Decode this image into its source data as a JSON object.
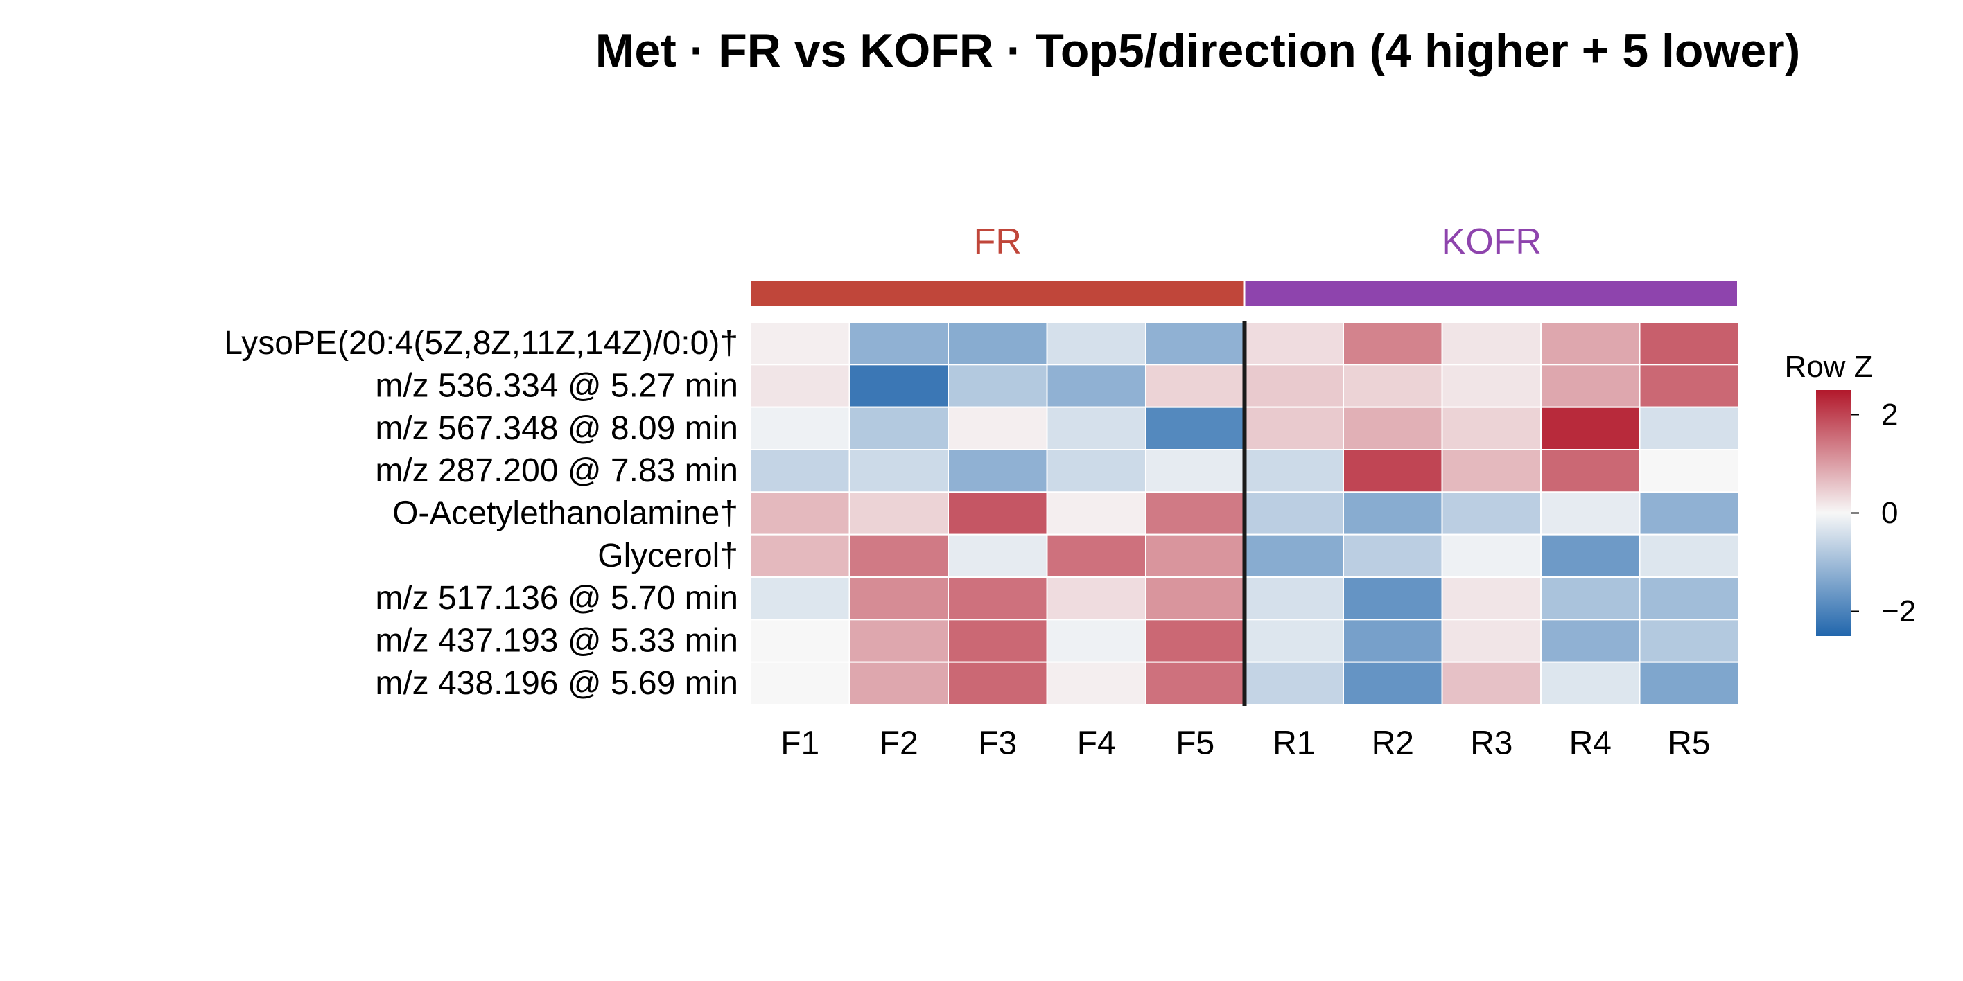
{
  "chart_data": {
    "type": "heatmap",
    "title": "Met · FR vs KOFR · Top5/direction (4 higher + 5 lower)",
    "groups": [
      {
        "label": "FR",
        "color": "#c0463a",
        "columns": [
          "F1",
          "F2",
          "F3",
          "F4",
          "F5"
        ]
      },
      {
        "label": "KOFR",
        "color": "#8e44ad",
        "columns": [
          "R1",
          "R2",
          "R3",
          "R4",
          "R5"
        ]
      }
    ],
    "columns": [
      "F1",
      "F2",
      "F3",
      "F4",
      "F5",
      "R1",
      "R2",
      "R3",
      "R4",
      "R5"
    ],
    "rows": [
      "LysoPE(20:4(5Z,8Z,11Z,14Z)/0:0)†",
      "m/z 536.334 @ 5.27 min",
      "m/z 567.348 @ 8.09 min",
      "m/z 287.200 @ 7.83 min",
      "O-Acetylethanolamine†",
      "Glycerol†",
      "m/z 517.136 @ 5.70 min",
      "m/z 437.193 @ 5.33 min",
      "m/z 438.196 @ 5.69 min"
    ],
    "values": [
      [
        0.1,
        -1.2,
        -1.3,
        -0.4,
        -1.2,
        0.3,
        1.3,
        0.2,
        0.9,
        1.7
      ],
      [
        0.2,
        -2.2,
        -0.8,
        -1.2,
        0.4,
        0.5,
        0.4,
        0.2,
        0.9,
        1.6
      ],
      [
        -0.1,
        -0.8,
        0.1,
        -0.4,
        -1.9,
        0.5,
        0.8,
        0.4,
        2.3,
        -0.4
      ],
      [
        -0.6,
        -0.5,
        -1.2,
        -0.5,
        -0.2,
        -0.5,
        2.0,
        0.7,
        1.6,
        0.0
      ],
      [
        0.7,
        0.4,
        1.8,
        0.1,
        1.4,
        -0.7,
        -1.3,
        -0.7,
        -0.2,
        -1.2
      ],
      [
        0.7,
        1.4,
        -0.2,
        1.5,
        1.1,
        -1.3,
        -0.7,
        -0.1,
        -1.6,
        -0.3
      ],
      [
        -0.3,
        1.2,
        1.5,
        0.3,
        1.1,
        -0.4,
        -1.7,
        0.2,
        -0.9,
        -1.0
      ],
      [
        0.0,
        0.9,
        1.6,
        -0.1,
        1.6,
        -0.3,
        -1.5,
        0.2,
        -1.2,
        -0.8
      ],
      [
        0.0,
        0.9,
        1.6,
        0.1,
        1.5,
        -0.6,
        -1.7,
        0.6,
        -0.3,
        -1.4
      ]
    ],
    "colorbar": {
      "title": "Row Z",
      "range": [
        -2.5,
        2.5
      ],
      "ticks": [
        2,
        0,
        -2
      ],
      "tick_labels": [
        "2",
        "0",
        "−2"
      ],
      "colors": [
        "#2166ac",
        "#f7f7f7",
        "#b2182b"
      ]
    }
  }
}
